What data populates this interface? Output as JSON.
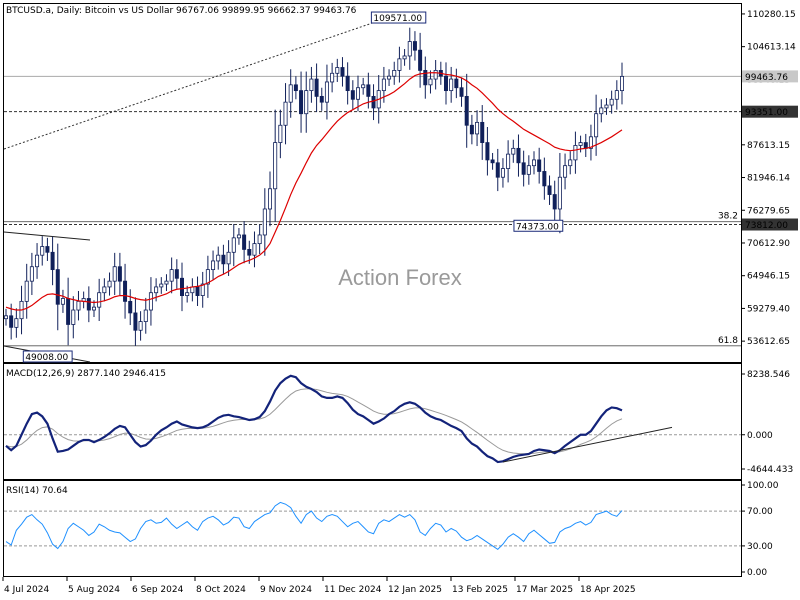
{
  "chart_data": {
    "type": "candlestick",
    "symbol_info": "BTCUSD.a, Daily:  Bitcoin vs US Dollar  96767.06 99899.95 96662.37 99463.76",
    "watermark": "Action Forex",
    "x_labels": [
      "4 Jul 2024",
      "5 Aug 2024",
      "6 Sep 2024",
      "8 Oct 2024",
      "9 Nov 2024",
      "11 Dec 2024",
      "12 Jan 2025",
      "13 Feb 2025",
      "17 Mar 2025",
      "18 Apr 2025"
    ],
    "price_panel": {
      "ylim": [
        50000,
        112000
      ],
      "y_ticks": [
        "110280.15",
        "104613.14",
        "98946.13",
        "93279.12",
        "87613.15",
        "81946.14",
        "76279.65",
        "70612.90",
        "64946.15",
        "59279.40",
        "53612.65"
      ],
      "current_price": "99463.76",
      "ma_color": "#dd0000",
      "candle_color": "#10205a",
      "series": [
        {
          "name": "close",
          "values": [
            58000,
            56000,
            57500,
            60500,
            64000,
            66500,
            68500,
            70000,
            69000,
            66000,
            60000,
            61000,
            56500,
            59000,
            60500,
            61000,
            59000,
            59500,
            62000,
            63000,
            64000,
            66500,
            64000,
            60500,
            58500,
            55500,
            57000,
            59000,
            62000,
            63000,
            63500,
            64000,
            66000,
            64500,
            61500,
            62000,
            63000,
            61500,
            63500,
            66000,
            67500,
            68500,
            67000,
            69000,
            71500,
            72000,
            69500,
            68500,
            70500,
            72000,
            76500,
            80000,
            88000,
            91000,
            95000,
            98000,
            97000,
            93000,
            97000,
            99000,
            96000,
            95000,
            98500,
            100000,
            101000,
            99500,
            97000,
            95500,
            97500,
            98000,
            96000,
            94000,
            97000,
            99000,
            99500,
            100500,
            102500,
            103000,
            105500,
            104000,
            100500,
            98000,
            99000,
            100500,
            99500,
            97000,
            99000,
            97500,
            96000,
            91000,
            89500,
            91500,
            88000,
            85000,
            84500,
            82000,
            83500,
            86000,
            87000,
            84500,
            82500,
            84000,
            85000,
            83000,
            80500,
            79000,
            76500,
            82000,
            84000,
            85000,
            87500,
            88000,
            87000,
            89000,
            93000,
            94000,
            94500,
            95500,
            97000,
            99463.76
          ]
        },
        {
          "name": "MA",
          "values": [
            59500,
            59200,
            59000,
            59000,
            59300,
            59800,
            60500,
            61200,
            61700,
            61800,
            61600,
            61400,
            61000,
            60800,
            60600,
            60500,
            60400,
            60300,
            60400,
            60600,
            60900,
            61300,
            61500,
            61500,
            61300,
            61000,
            60800,
            60700,
            60900,
            61200,
            61500,
            61800,
            62300,
            62600,
            62700,
            62800,
            63000,
            63100,
            63300,
            63700,
            64200,
            64800,
            65200,
            65700,
            66300,
            66900,
            67300,
            67600,
            68000,
            68500,
            69300,
            70500,
            72500,
            74500,
            76700,
            79000,
            81000,
            82700,
            84500,
            86200,
            87500,
            88500,
            89600,
            90700,
            91700,
            92500,
            93200,
            93700,
            94200,
            94700,
            95000,
            95200,
            95500,
            95900,
            96300,
            96800,
            97500,
            98200,
            99000,
            99600,
            99900,
            100000,
            100100,
            100100,
            100000,
            99800,
            99700,
            99500,
            99200,
            98700,
            98000,
            97400,
            96600,
            95700,
            94800,
            93800,
            93000,
            92300,
            91700,
            91000,
            90300,
            89800,
            89300,
            88800,
            88300,
            87800,
            87200,
            86900,
            86700,
            86600,
            86700,
            86900,
            87000,
            87200,
            87600,
            88000,
            88500,
            89000,
            89600,
            90200
          ]
        }
      ],
      "levels": [
        {
          "label": "93351.00",
          "value": 93351.0,
          "style": "dashed"
        },
        {
          "label": "73812.00",
          "value": 73812.0,
          "style": "dashed"
        },
        {
          "label": "38.2",
          "value": 74300,
          "style": "fib"
        },
        {
          "label": "61.8",
          "value": 52800,
          "style": "fib"
        }
      ],
      "annotations": [
        {
          "label": "109571.00",
          "value": 109571.0,
          "index": 77
        },
        {
          "label": "74373.00",
          "value": 74373.0,
          "index": 104
        },
        {
          "label": "49008.00",
          "value": 49008.0,
          "index": 12
        }
      ]
    },
    "macd_panel": {
      "title": "MACD(12,26,9) 2877.140 2946.415",
      "ylim": [
        -4644.433,
        8238.546
      ],
      "y_ticks": [
        "8238.546",
        "0.000",
        "-4644.433"
      ],
      "macd": [
        -1500,
        -2100,
        -1500,
        0,
        1500,
        2800,
        3000,
        2500,
        1500,
        -500,
        -2300,
        -2200,
        -2000,
        -1500,
        -1000,
        -700,
        -700,
        -1000,
        -700,
        -300,
        200,
        800,
        1200,
        1000,
        0,
        -1000,
        -1600,
        -1400,
        -800,
        0,
        600,
        1000,
        1500,
        1800,
        1400,
        1200,
        1000,
        900,
        1000,
        1300,
        1800,
        2300,
        2600,
        2700,
        2500,
        2400,
        2200,
        2000,
        2100,
        2400,
        3200,
        4500,
        6000,
        7000,
        7600,
        8000,
        7800,
        7000,
        6500,
        6200,
        5800,
        5200,
        5000,
        5000,
        5200,
        5000,
        4300,
        3400,
        2800,
        2500,
        2000,
        1500,
        1800,
        2200,
        2800,
        3200,
        3800,
        4200,
        4400,
        4200,
        3700,
        3000,
        2500,
        2200,
        2000,
        1600,
        1200,
        900,
        500,
        -500,
        -1200,
        -1600,
        -2300,
        -2900,
        -3200,
        -3700,
        -3600,
        -3300,
        -3000,
        -2800,
        -2700,
        -2600,
        -2200,
        -2000,
        -2100,
        -2200,
        -2500,
        -2100,
        -1500,
        -1000,
        -500,
        0,
        0,
        500,
        1500,
        2500,
        3300,
        3700,
        3600,
        3300
      ]
    },
    "rsi_panel": {
      "title": "RSI(14) 70.64",
      "ylim": [
        0,
        100
      ],
      "y_ticks": [
        "100.00",
        "70.00",
        "30.00",
        "0.00"
      ],
      "levels": [
        70,
        30
      ],
      "values": [
        35,
        31,
        48,
        55,
        63,
        66,
        60,
        55,
        45,
        32,
        27,
        35,
        50,
        56,
        52,
        48,
        42,
        46,
        55,
        52,
        48,
        46,
        45,
        40,
        35,
        38,
        50,
        58,
        60,
        56,
        57,
        62,
        55,
        50,
        54,
        58,
        52,
        48,
        58,
        62,
        64,
        60,
        54,
        57,
        63,
        62,
        52,
        50,
        58,
        62,
        66,
        68,
        76,
        80,
        78,
        74,
        64,
        56,
        66,
        70,
        62,
        58,
        64,
        66,
        64,
        58,
        52,
        56,
        58,
        52,
        46,
        44,
        56,
        60,
        58,
        62,
        66,
        63,
        66,
        60,
        46,
        42,
        50,
        56,
        54,
        46,
        50,
        47,
        40,
        36,
        38,
        42,
        38,
        34,
        30,
        26,
        32,
        40,
        44,
        40,
        35,
        44,
        48,
        43,
        38,
        33,
        34,
        46,
        50,
        52,
        56,
        58,
        54,
        57,
        66,
        68,
        70,
        66,
        64,
        70.64
      ]
    }
  }
}
